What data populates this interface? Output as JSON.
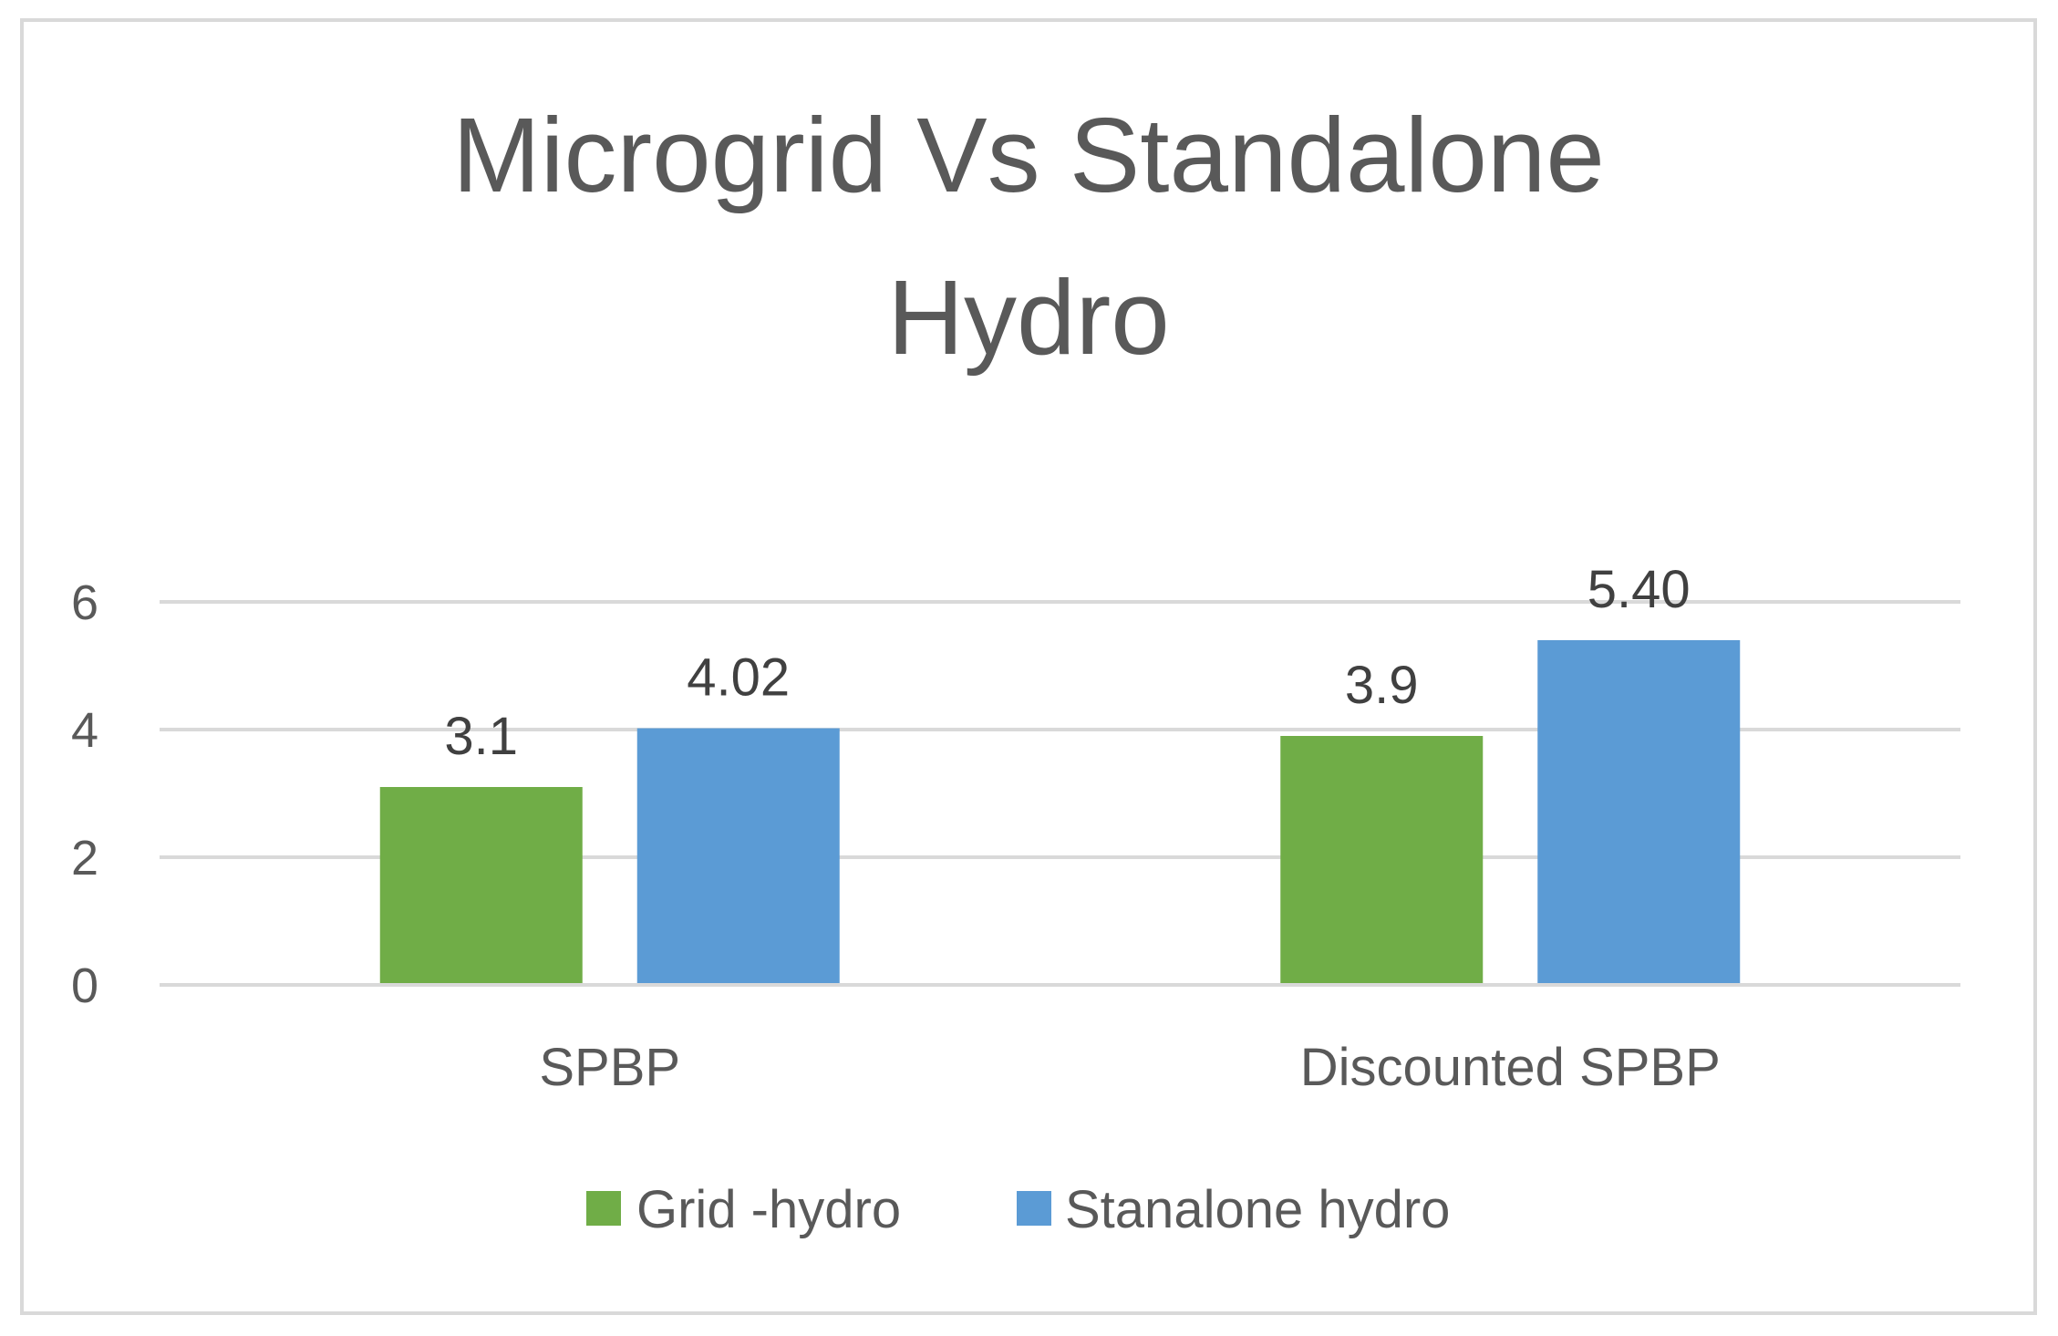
{
  "chart_data": {
    "type": "bar",
    "title_lines": [
      "Microgrid Vs Standalone",
      "Hydro"
    ],
    "categories": [
      "SPBP",
      "Discounted SPBP"
    ],
    "series": [
      {
        "name": "Grid -hydro",
        "color": "#70AD47",
        "values": [
          3.1,
          3.9
        ],
        "labels": [
          "3.1",
          "3.9"
        ]
      },
      {
        "name": "Stanalone hydro",
        "color": "#5B9BD5",
        "values": [
          4.02,
          5.4
        ],
        "labels": [
          "4.02",
          "5.40"
        ]
      }
    ],
    "yticks": [
      0,
      2,
      4,
      6
    ],
    "ylim": [
      0,
      6
    ],
    "xlabel": "",
    "ylabel": "",
    "grid": true,
    "legend": "bottom-center"
  }
}
